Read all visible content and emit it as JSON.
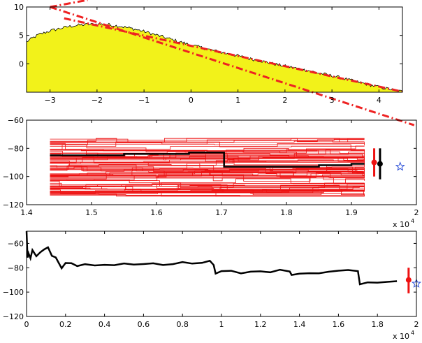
{
  "colors": {
    "histogram_fill": "#f2f21a",
    "histogram_outline": "#000000",
    "fit_line": "#ee2222",
    "trajectory_ensemble": "#ee1111",
    "reference_path": "#000000",
    "marker_red": "#ee1111",
    "marker_black": "#000000",
    "star_marker": "#2b4fd8"
  },
  "chart_data": [
    {
      "type": "area",
      "title": "",
      "xlabel": "",
      "ylabel": "",
      "xlim": [
        -3.5,
        4.5
      ],
      "ylim": [
        -5,
        10
      ],
      "xticks": [
        -3,
        -2,
        -1,
        0,
        1,
        2,
        3,
        4
      ],
      "yticks": [
        0,
        5,
        10
      ],
      "grid": false,
      "series": [
        {
          "style": "filled histogram (yellow area, black outline, jagged)",
          "x": [
            -3.5,
            -3.25,
            -3.0,
            -2.75,
            -2.5,
            -2.25,
            -2.0,
            -1.75,
            -1.5,
            -1.25,
            -1.0,
            -0.75,
            -0.5,
            -0.25,
            0.0,
            0.25,
            0.5,
            0.75,
            1.0,
            1.25,
            1.5,
            1.75,
            2.0,
            2.25,
            2.5,
            2.75,
            3.0,
            3.25,
            3.5,
            3.75,
            4.0,
            4.25,
            4.5
          ],
          "y": [
            3.9,
            5.1,
            5.8,
            6.3,
            6.7,
            6.9,
            7.0,
            6.9,
            6.6,
            6.2,
            5.7,
            5.1,
            4.5,
            3.9,
            3.3,
            2.8,
            2.3,
            1.8,
            1.4,
            0.9,
            0.5,
            0.0,
            -0.4,
            -0.8,
            -1.2,
            -1.7,
            -2.1,
            -2.6,
            -3.1,
            -3.6,
            -4.1,
            -4.5,
            -4.9
          ]
        },
        {
          "style": "red dash-dot line (shallow)",
          "x": [
            -2.7,
            4.5
          ],
          "y": [
            8.0,
            -4.9
          ]
        },
        {
          "style": "red dash-dot line (steep)",
          "x": [
            -3.0,
            4.75
          ],
          "y": [
            10.0,
            -10.8
          ]
        }
      ]
    },
    {
      "type": "line",
      "title": "",
      "xlabel": "",
      "ylabel": "",
      "xlim": [
        1.4,
        2.0
      ],
      "ylim": [
        -120,
        -60
      ],
      "xticks": [
        1.4,
        1.5,
        1.6,
        1.7,
        1.8,
        1.9,
        2.0
      ],
      "yticks": [
        -60,
        -80,
        -100,
        -120
      ],
      "x_multiplier_label": "x 10",
      "x_multiplier_exponent": "4",
      "grid": false,
      "ensemble": {
        "style": "many thin red step trajectories",
        "count": 90,
        "x_range": [
          1.436,
          1.92
        ],
        "y_band": [
          -114,
          -73
        ]
      },
      "series": [
        {
          "style": "black thick step line",
          "x": [
            1.436,
            1.5,
            1.55,
            1.6,
            1.64,
            1.65,
            1.7,
            1.704,
            1.75,
            1.8,
            1.85,
            1.9,
            1.92
          ],
          "y": [
            -85,
            -85,
            -84,
            -84,
            -84,
            -83,
            -83,
            -93,
            -93,
            -93,
            -92,
            -91,
            -91
          ]
        }
      ],
      "markers": [
        {
          "type": "errorbar",
          "color": "red",
          "x": 1.935,
          "y": -90,
          "y_low": -100,
          "y_high": -80
        },
        {
          "type": "errorbar",
          "color": "black",
          "x": 1.944,
          "y": -91,
          "y_low": -102,
          "y_high": -80
        },
        {
          "type": "star",
          "color": "blue",
          "x": 1.975,
          "y": -93
        }
      ]
    },
    {
      "type": "line",
      "title": "",
      "xlabel": "",
      "ylabel": "",
      "xlim": [
        0,
        2.0
      ],
      "ylim": [
        -120,
        -50
      ],
      "xticks": [
        0,
        0.2,
        0.4,
        0.6,
        0.8,
        1.0,
        1.2,
        1.4,
        1.6,
        1.8,
        2.0
      ],
      "yticks": [
        -60,
        -80,
        -100,
        -120
      ],
      "x_multiplier_label": "x 10",
      "x_multiplier_exponent": "4",
      "grid": false,
      "series": [
        {
          "style": "black thick jagged line",
          "x": [
            0,
            0.005,
            0.01,
            0.02,
            0.03,
            0.05,
            0.07,
            0.09,
            0.11,
            0.13,
            0.15,
            0.18,
            0.2,
            0.23,
            0.26,
            0.3,
            0.35,
            0.4,
            0.45,
            0.5,
            0.55,
            0.6,
            0.65,
            0.7,
            0.75,
            0.8,
            0.85,
            0.9,
            0.94,
            0.96,
            0.97,
            1.0,
            1.05,
            1.1,
            1.15,
            1.2,
            1.25,
            1.3,
            1.35,
            1.36,
            1.4,
            1.45,
            1.5,
            1.55,
            1.6,
            1.65,
            1.7,
            1.71,
            1.75,
            1.8,
            1.85,
            1.9
          ],
          "y": [
            -50,
            -72,
            -68,
            -72,
            -66,
            -70,
            -68,
            -65,
            -63,
            -70,
            -72,
            -80,
            -76,
            -76,
            -78,
            -77,
            -78,
            -77,
            -78,
            -77,
            -78,
            -77,
            -77,
            -78,
            -77,
            -76,
            -77,
            -76,
            -74,
            -77,
            -85,
            -83,
            -83,
            -84,
            -83,
            -83,
            -84,
            -82,
            -83,
            -86,
            -85,
            -84,
            -84,
            -83,
            -83,
            -82,
            -83,
            -93,
            -92,
            -92,
            -91,
            -91
          ]
        }
      ],
      "markers": [
        {
          "type": "errorbar",
          "color": "red",
          "x": 1.96,
          "y": -90,
          "y_low": -101,
          "y_high": -80
        },
        {
          "type": "star",
          "color": "blue",
          "x": 2.0,
          "y": -93
        }
      ]
    }
  ]
}
